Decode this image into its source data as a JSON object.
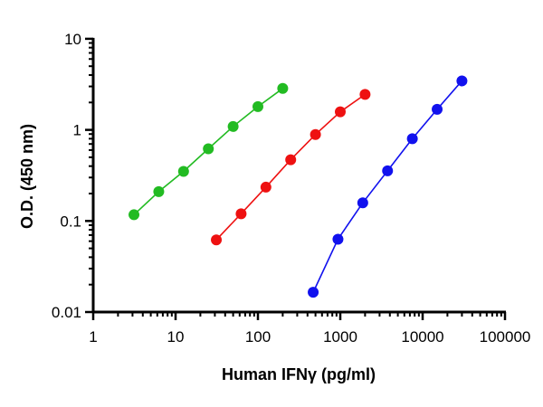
{
  "chart_data": {
    "type": "line",
    "title": "",
    "xlabel": "Human IFNγ (pg/ml)",
    "ylabel": "O.D. (450 nm)",
    "xscale": "log",
    "yscale": "log",
    "xlim": [
      1,
      100000
    ],
    "ylim": [
      0.01,
      10
    ],
    "xticks": [
      "1",
      "10",
      "100",
      "1000",
      "10000",
      "100000"
    ],
    "yticks": [
      "0.01",
      "0.1",
      "1",
      "10"
    ],
    "grid": false,
    "legend": "none",
    "series": [
      {
        "color": "#22bb22",
        "x": [
          3.125,
          6.25,
          12.5,
          25,
          50,
          100,
          200
        ],
        "y": [
          0.117,
          0.21,
          0.35,
          0.62,
          1.09,
          1.8,
          2.85
        ]
      },
      {
        "color": "#ee1111",
        "x": [
          31.25,
          62.5,
          125,
          250,
          500,
          1000,
          2000
        ],
        "y": [
          0.062,
          0.12,
          0.235,
          0.47,
          0.89,
          1.58,
          2.45
        ]
      },
      {
        "color": "#1111ee",
        "x": [
          468.75,
          937.5,
          1875,
          3750,
          7500,
          15000,
          30000
        ],
        "y": [
          0.0165,
          0.063,
          0.158,
          0.355,
          0.8,
          1.68,
          3.45
        ]
      }
    ]
  }
}
